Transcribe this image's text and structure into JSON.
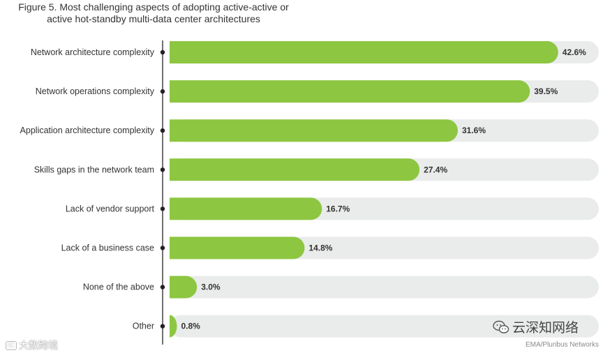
{
  "title": {
    "line1": "Figure 5. Most challenging aspects of adopting active-active or",
    "line2": "active hot-standby multi-data center architectures"
  },
  "chart_data": {
    "type": "bar",
    "orientation": "horizontal",
    "title": "Figure 5. Most challenging aspects of adopting active-active or active hot-standby multi-data center architectures",
    "categories": [
      "Network architecture complexity",
      "Network operations complexity",
      "Application architecture complexity",
      "Skills gaps in the network team",
      "Lack of vendor support",
      "Lack of a business case",
      "None of the above",
      "Other"
    ],
    "values": [
      42.6,
      39.5,
      31.6,
      27.4,
      16.7,
      14.8,
      3.0,
      0.8
    ],
    "labels": [
      "42.6%",
      "39.5%",
      "31.6%",
      "27.4%",
      "16.7%",
      "14.8%",
      "3.0%",
      "0.8%"
    ],
    "xlim": [
      0,
      43
    ],
    "xlabel": "",
    "ylabel": "",
    "colors": {
      "bar": "#8dc641",
      "track": "#e9ecea",
      "axis": "#222222"
    }
  },
  "source": "EMA/Pluribus Networks",
  "watermark_right": "云深知网络",
  "watermark_left": "大数跨境",
  "watermark_left_badge": "IC"
}
